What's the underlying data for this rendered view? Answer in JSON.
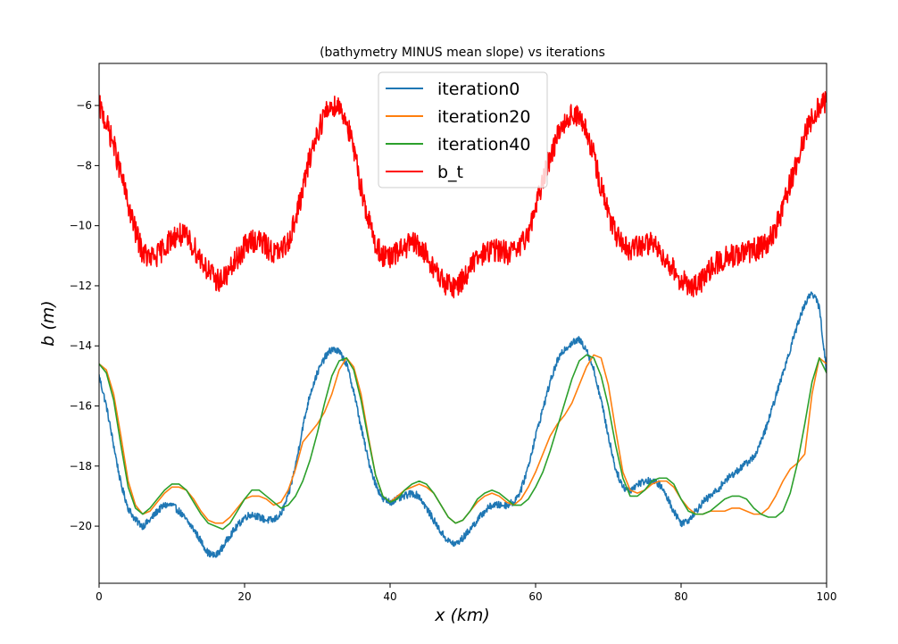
{
  "chart_data": {
    "type": "line",
    "title": "(bathymetry MINUS mean slope) vs iterations",
    "xlabel": "x (km)",
    "ylabel": "b (m)",
    "xlim": [
      0,
      100
    ],
    "ylim": [
      -21.9,
      -4.6
    ],
    "xticks": [
      0,
      20,
      40,
      60,
      80,
      100
    ],
    "yticks": [
      -20,
      -18,
      -16,
      -14,
      -12,
      -10,
      -8,
      -6
    ],
    "grid": false,
    "legend_position": "top-center",
    "series": [
      {
        "name": "iteration0",
        "color": "#1f77b4",
        "noise": 0.12,
        "x": [
          0,
          1,
          2,
          3,
          4,
          5,
          6,
          7,
          8,
          9,
          10,
          11,
          12,
          13,
          14,
          15,
          16,
          17,
          18,
          19,
          20,
          21,
          22,
          23,
          24,
          25,
          26,
          27,
          28,
          29,
          30,
          31,
          32,
          33,
          34,
          35,
          36,
          37,
          38,
          39,
          40,
          41,
          42,
          43,
          44,
          45,
          46,
          47,
          48,
          49,
          50,
          51,
          52,
          53,
          54,
          55,
          56,
          57,
          58,
          59,
          60,
          61,
          62,
          63,
          64,
          65,
          66,
          67,
          68,
          69,
          70,
          71,
          72,
          73,
          74,
          75,
          76,
          77,
          78,
          79,
          80,
          81,
          82,
          83,
          84,
          85,
          86,
          87,
          88,
          89,
          90,
          91,
          92,
          93,
          94,
          95,
          96,
          97,
          98,
          99,
          100
        ],
        "y": [
          -15.0,
          -16.0,
          -17.3,
          -18.6,
          -19.4,
          -19.8,
          -20.0,
          -19.8,
          -19.5,
          -19.3,
          -19.3,
          -19.5,
          -19.8,
          -20.1,
          -20.5,
          -20.9,
          -21.0,
          -20.7,
          -20.3,
          -20.0,
          -19.7,
          -19.6,
          -19.7,
          -19.8,
          -19.8,
          -19.6,
          -19.0,
          -18.0,
          -16.7,
          -15.6,
          -14.9,
          -14.4,
          -14.1,
          -14.2,
          -14.6,
          -15.5,
          -16.7,
          -17.8,
          -18.6,
          -19.1,
          -19.2,
          -19.1,
          -19.0,
          -18.9,
          -19.0,
          -19.4,
          -19.8,
          -20.2,
          -20.5,
          -20.6,
          -20.4,
          -20.1,
          -19.8,
          -19.5,
          -19.3,
          -19.3,
          -19.3,
          -19.2,
          -18.8,
          -18.0,
          -17.0,
          -16.1,
          -15.2,
          -14.5,
          -14.1,
          -13.9,
          -13.8,
          -14.1,
          -14.8,
          -15.8,
          -17.0,
          -18.1,
          -18.7,
          -18.8,
          -18.6,
          -18.5,
          -18.5,
          -18.6,
          -19.0,
          -19.5,
          -19.9,
          -19.8,
          -19.5,
          -19.2,
          -19.0,
          -18.8,
          -18.5,
          -18.3,
          -18.1,
          -17.9,
          -17.7,
          -17.2,
          -16.5,
          -15.7,
          -14.9,
          -14.1,
          -13.3,
          -12.6,
          -12.2,
          -12.7,
          -14.9
        ]
      },
      {
        "name": "iteration20",
        "color": "#ff7f0e",
        "noise": 0,
        "x": [
          0,
          1,
          2,
          3,
          4,
          5,
          6,
          7,
          8,
          9,
          10,
          11,
          12,
          13,
          14,
          15,
          16,
          17,
          18,
          19,
          20,
          21,
          22,
          23,
          24,
          25,
          26,
          27,
          28,
          29,
          30,
          31,
          32,
          33,
          34,
          35,
          36,
          37,
          38,
          39,
          40,
          41,
          42,
          43,
          44,
          45,
          46,
          47,
          48,
          49,
          50,
          51,
          52,
          53,
          54,
          55,
          56,
          57,
          58,
          59,
          60,
          61,
          62,
          63,
          64,
          65,
          66,
          67,
          68,
          69,
          70,
          71,
          72,
          73,
          74,
          75,
          76,
          77,
          78,
          79,
          80,
          81,
          82,
          83,
          84,
          85,
          86,
          87,
          88,
          89,
          90,
          91,
          92,
          93,
          94,
          95,
          96,
          97,
          98,
          99,
          100
        ],
        "y": [
          -14.6,
          -14.8,
          -15.6,
          -17.0,
          -18.5,
          -19.3,
          -19.6,
          -19.5,
          -19.2,
          -18.9,
          -18.7,
          -18.7,
          -18.8,
          -19.1,
          -19.5,
          -19.8,
          -19.9,
          -19.9,
          -19.7,
          -19.4,
          -19.1,
          -19.0,
          -19.0,
          -19.1,
          -19.3,
          -19.2,
          -18.8,
          -18.1,
          -17.2,
          -16.9,
          -16.6,
          -16.2,
          -15.6,
          -14.8,
          -14.4,
          -14.7,
          -15.6,
          -17.0,
          -18.3,
          -19.0,
          -19.2,
          -19.0,
          -18.8,
          -18.7,
          -18.6,
          -18.7,
          -18.9,
          -19.3,
          -19.7,
          -19.9,
          -19.8,
          -19.5,
          -19.2,
          -19.0,
          -18.9,
          -19.0,
          -19.2,
          -19.3,
          -19.1,
          -18.7,
          -18.2,
          -17.6,
          -17.0,
          -16.6,
          -16.3,
          -15.9,
          -15.3,
          -14.7,
          -14.3,
          -14.4,
          -15.3,
          -16.8,
          -18.2,
          -18.8,
          -18.9,
          -18.8,
          -18.6,
          -18.5,
          -18.5,
          -18.7,
          -19.1,
          -19.4,
          -19.6,
          -19.6,
          -19.5,
          -19.5,
          -19.5,
          -19.4,
          -19.4,
          -19.5,
          -19.6,
          -19.6,
          -19.4,
          -19.0,
          -18.5,
          -18.1,
          -17.9,
          -17.6,
          -15.6,
          -14.4,
          -14.6
        ]
      },
      {
        "name": "iteration40",
        "color": "#2ca02c",
        "noise": 0,
        "x": [
          0,
          1,
          2,
          3,
          4,
          5,
          6,
          7,
          8,
          9,
          10,
          11,
          12,
          13,
          14,
          15,
          16,
          17,
          18,
          19,
          20,
          21,
          22,
          23,
          24,
          25,
          26,
          27,
          28,
          29,
          30,
          31,
          32,
          33,
          34,
          35,
          36,
          37,
          38,
          39,
          40,
          41,
          42,
          43,
          44,
          45,
          46,
          47,
          48,
          49,
          50,
          51,
          52,
          53,
          54,
          55,
          56,
          57,
          58,
          59,
          60,
          61,
          62,
          63,
          64,
          65,
          66,
          67,
          68,
          69,
          70,
          71,
          72,
          73,
          74,
          75,
          76,
          77,
          78,
          79,
          80,
          81,
          82,
          83,
          84,
          85,
          86,
          87,
          88,
          89,
          90,
          91,
          92,
          93,
          94,
          95,
          96,
          97,
          98,
          99,
          100
        ],
        "y": [
          -14.6,
          -14.9,
          -15.8,
          -17.3,
          -18.7,
          -19.4,
          -19.6,
          -19.4,
          -19.1,
          -18.8,
          -18.6,
          -18.6,
          -18.8,
          -19.2,
          -19.6,
          -19.9,
          -20.0,
          -20.1,
          -19.9,
          -19.5,
          -19.1,
          -18.8,
          -18.8,
          -19.0,
          -19.2,
          -19.4,
          -19.3,
          -19.0,
          -18.5,
          -17.8,
          -16.9,
          -15.9,
          -15.0,
          -14.5,
          -14.4,
          -14.8,
          -15.8,
          -17.1,
          -18.3,
          -19.0,
          -19.2,
          -19.1,
          -18.8,
          -18.6,
          -18.5,
          -18.6,
          -18.9,
          -19.3,
          -19.7,
          -19.9,
          -19.8,
          -19.5,
          -19.1,
          -18.9,
          -18.8,
          -18.9,
          -19.1,
          -19.3,
          -19.3,
          -19.1,
          -18.7,
          -18.2,
          -17.5,
          -16.7,
          -15.9,
          -15.1,
          -14.5,
          -14.3,
          -14.4,
          -15.0,
          -16.0,
          -17.3,
          -18.4,
          -19.0,
          -19.0,
          -18.8,
          -18.5,
          -18.4,
          -18.4,
          -18.6,
          -19.1,
          -19.5,
          -19.6,
          -19.6,
          -19.5,
          -19.3,
          -19.1,
          -19.0,
          -19.0,
          -19.1,
          -19.4,
          -19.6,
          -19.7,
          -19.7,
          -19.5,
          -18.9,
          -17.9,
          -16.6,
          -15.2,
          -14.4,
          -14.9
        ]
      },
      {
        "name": "b_t",
        "color": "#ff0000",
        "noise": 0.4,
        "x": [
          0,
          1,
          2,
          3,
          4,
          5,
          6,
          7,
          8,
          9,
          10,
          11,
          12,
          13,
          14,
          15,
          16,
          17,
          18,
          19,
          20,
          21,
          22,
          23,
          24,
          25,
          26,
          27,
          28,
          29,
          30,
          31,
          32,
          33,
          34,
          35,
          36,
          37,
          38,
          39,
          40,
          41,
          42,
          43,
          44,
          45,
          46,
          47,
          48,
          49,
          50,
          51,
          52,
          53,
          54,
          55,
          56,
          57,
          58,
          59,
          60,
          61,
          62,
          63,
          64,
          65,
          66,
          67,
          68,
          69,
          70,
          71,
          72,
          73,
          74,
          75,
          76,
          77,
          78,
          79,
          80,
          81,
          82,
          83,
          84,
          85,
          86,
          87,
          88,
          89,
          90,
          91,
          92,
          93,
          94,
          95,
          96,
          97,
          98,
          99,
          100
        ],
        "y": [
          -6.0,
          -6.6,
          -7.3,
          -8.3,
          -9.3,
          -10.2,
          -10.9,
          -11.1,
          -11.0,
          -10.7,
          -10.4,
          -10.3,
          -10.4,
          -10.7,
          -11.1,
          -11.5,
          -11.8,
          -11.8,
          -11.5,
          -11.1,
          -10.7,
          -10.5,
          -10.5,
          -10.7,
          -10.9,
          -10.9,
          -10.5,
          -9.8,
          -8.8,
          -7.7,
          -6.9,
          -6.3,
          -6.0,
          -6.0,
          -6.5,
          -7.5,
          -8.7,
          -9.8,
          -10.6,
          -11.0,
          -11.1,
          -10.9,
          -10.7,
          -10.6,
          -10.7,
          -11.0,
          -11.4,
          -11.8,
          -12.0,
          -12.0,
          -11.8,
          -11.4,
          -11.1,
          -10.9,
          -10.8,
          -10.8,
          -10.9,
          -10.9,
          -10.7,
          -10.2,
          -9.4,
          -8.5,
          -7.7,
          -7.0,
          -6.5,
          -6.3,
          -6.4,
          -6.9,
          -7.7,
          -8.7,
          -9.6,
          -10.3,
          -10.7,
          -10.8,
          -10.7,
          -10.6,
          -10.6,
          -10.8,
          -11.1,
          -11.5,
          -11.8,
          -12.0,
          -12.0,
          -11.8,
          -11.5,
          -11.2,
          -11.1,
          -11.0,
          -11.0,
          -10.9,
          -10.8,
          -10.7,
          -10.5,
          -10.1,
          -9.4,
          -8.6,
          -7.8,
          -7.0,
          -6.4,
          -6.0,
          -5.8
        ]
      }
    ]
  }
}
